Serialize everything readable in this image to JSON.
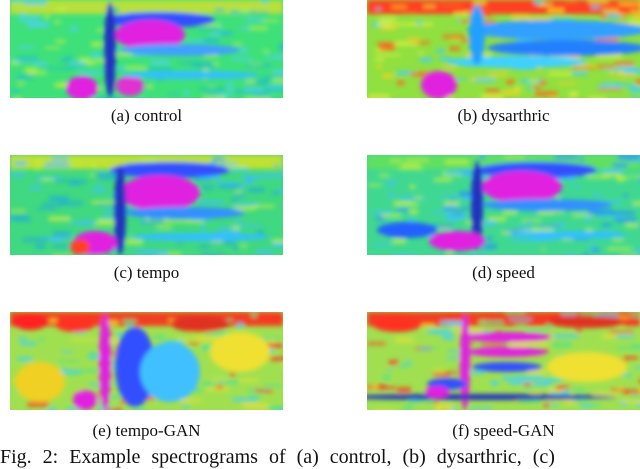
{
  "panels": [
    {
      "caption": "(a) control"
    },
    {
      "caption": "(b) dysarthric"
    },
    {
      "caption": "(c) tempo"
    },
    {
      "caption": "(d) speed"
    },
    {
      "caption": "(e) tempo-GAN"
    },
    {
      "caption": "(f) speed-GAN"
    }
  ],
  "figure_caption": "Fig. 2: Example spectrograms of (a) control, (b) dysarthric, (c)"
}
